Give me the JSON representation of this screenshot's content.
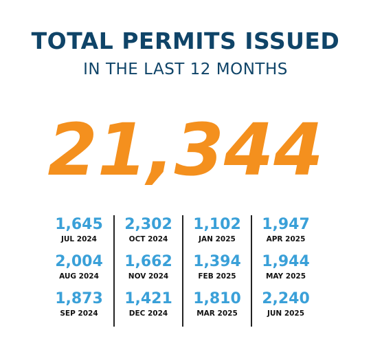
{
  "chart_data": {
    "type": "table",
    "title": "TOTAL PERMITS ISSUED",
    "subtitle": "IN THE LAST 12 MONTHS",
    "total": "21,344",
    "columns": [
      [
        {
          "month": "JUL 2024",
          "value": "1,645"
        },
        {
          "month": "AUG 2024",
          "value": "2,004"
        },
        {
          "month": "SEP 2024",
          "value": "1,873"
        }
      ],
      [
        {
          "month": "OCT 2024",
          "value": "2,302"
        },
        {
          "month": "NOV 2024",
          "value": "1,662"
        },
        {
          "month": "DEC 2024",
          "value": "1,421"
        }
      ],
      [
        {
          "month": "JAN 2025",
          "value": "1,102"
        },
        {
          "month": "FEB 2025",
          "value": "1,394"
        },
        {
          "month": "MAR 2025",
          "value": "1,810"
        }
      ],
      [
        {
          "month": "APR 2025",
          "value": "1,947"
        },
        {
          "month": "MAY 2025",
          "value": "1,944"
        },
        {
          "month": "JUN 2025",
          "value": "2,240"
        }
      ]
    ]
  },
  "colors": {
    "title": "#0f4468",
    "total": "#f4901e",
    "value": "#3aa0d8",
    "month": "#111111",
    "divider": "#222222"
  }
}
